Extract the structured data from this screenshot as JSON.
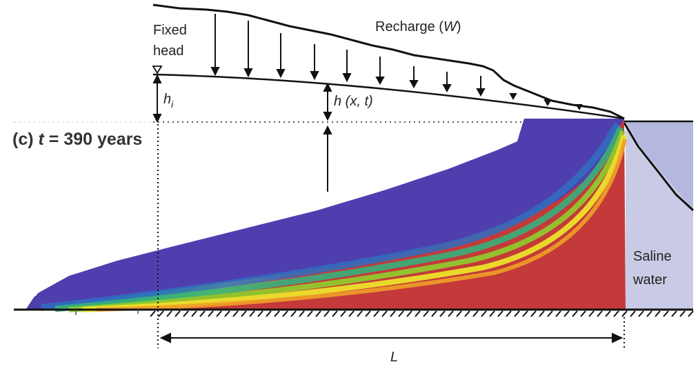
{
  "labels": {
    "fixed_head_line1": "Fixed",
    "fixed_head_line2": "head",
    "recharge_prefix": "Recharge (",
    "recharge_symbol": "W",
    "recharge_suffix": ")",
    "hi_symbol": "h",
    "hi_subscript": "i",
    "hxt": "h (x, t)",
    "panel_prefix": "(c) ",
    "panel_t": "t",
    "panel_value": " = 390 years",
    "saline_line1": "Saline",
    "saline_line2": "water",
    "length_symbol": "L"
  },
  "colors": {
    "freshwater": "#4f3fae",
    "saltwater": "#c4393a",
    "sea": "#c9cbe6",
    "sea_shallow": "#b9bde0"
  }
}
